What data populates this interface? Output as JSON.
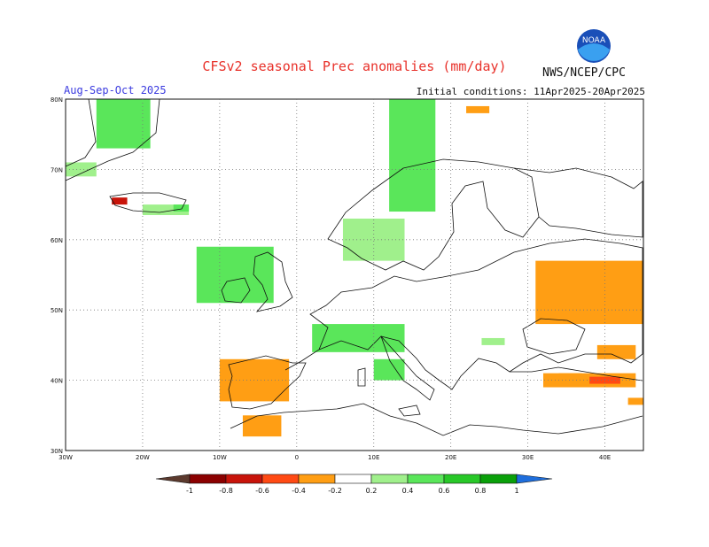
{
  "title": "CFSv2 seasonal Prec anomalies (mm/day)",
  "period": "Aug-Sep-Oct 2025",
  "initial_conditions": "Initial conditions: 11Apr2025-20Apr2025",
  "agency": "NWS/NCEP/CPC",
  "logo": {
    "icon": "noaa-logo-icon",
    "text": "NOAA"
  },
  "map": {
    "lon_range": [
      -30,
      45
    ],
    "lat_range": [
      30,
      80
    ],
    "lat_labels": [
      "80N",
      "70N",
      "60N",
      "50N",
      "40N",
      "30N"
    ],
    "lon_labels": [
      "30W",
      "20W",
      "10W",
      "0",
      "10E",
      "20E",
      "30E",
      "40E"
    ],
    "gridlines": "dotted"
  },
  "colorbar": {
    "ticks": [
      "-1",
      "-0.8",
      "-0.6",
      "-0.4",
      "-0.2",
      "0.2",
      "0.4",
      "0.6",
      "0.8",
      "1"
    ],
    "colors": [
      "#5c3a2e",
      "#8b0000",
      "#c8140a",
      "#ff4a14",
      "#ff9e14",
      "#ffffff",
      "#a0f08c",
      "#5ae65a",
      "#28c828",
      "#0aa00a",
      "#1e6edc"
    ]
  },
  "anomaly_regions": [
    {
      "level": "0.4",
      "lon": [
        -26,
        -19
      ],
      "lat": [
        73,
        80
      ]
    },
    {
      "level": "0.2",
      "lon": [
        -30,
        -26
      ],
      "lat": [
        69,
        71
      ]
    },
    {
      "level": "-0.8",
      "lon": [
        -24,
        -22
      ],
      "lat": [
        65,
        66
      ]
    },
    {
      "level": "0.2",
      "lon": [
        -20,
        -14
      ],
      "lat": [
        63.5,
        65
      ]
    },
    {
      "level": "0.4",
      "lon": [
        -16,
        -14
      ],
      "lat": [
        64,
        65
      ]
    },
    {
      "level": "0.4",
      "lon": [
        -13,
        -3
      ],
      "lat": [
        51,
        59
      ]
    },
    {
      "level": "0.4",
      "lon": [
        2,
        14
      ],
      "lat": [
        44,
        48
      ]
    },
    {
      "level": "0.4",
      "lon": [
        10,
        14
      ],
      "lat": [
        40,
        43
      ]
    },
    {
      "level": "0.2",
      "lon": [
        6,
        14
      ],
      "lat": [
        57,
        63
      ]
    },
    {
      "level": "0.4",
      "lon": [
        12,
        18
      ],
      "lat": [
        64,
        80
      ]
    },
    {
      "level": "0.2",
      "lon": [
        24,
        27
      ],
      "lat": [
        45,
        46
      ]
    },
    {
      "level": "-0.2",
      "lon": [
        -10,
        -1
      ],
      "lat": [
        37,
        43
      ]
    },
    {
      "level": "-0.2",
      "lon": [
        -7,
        -2
      ],
      "lat": [
        32,
        35
      ]
    },
    {
      "level": "-0.2",
      "lon": [
        31,
        45
      ],
      "lat": [
        48,
        57
      ]
    },
    {
      "level": "-0.2",
      "lon": [
        39,
        44
      ],
      "lat": [
        43,
        45
      ]
    },
    {
      "level": "-0.2",
      "lon": [
        32,
        44
      ],
      "lat": [
        39,
        41
      ]
    },
    {
      "level": "-0.4",
      "lon": [
        34,
        37
      ],
      "lat": [
        40,
        41
      ]
    },
    {
      "level": "-0.6",
      "lon": [
        38,
        42
      ],
      "lat": [
        39.5,
        40.5
      ]
    },
    {
      "level": "-0.2",
      "lon": [
        43,
        45
      ],
      "lat": [
        36.5,
        37.5
      ]
    },
    {
      "level": "-0.2",
      "lon": [
        22,
        25
      ],
      "lat": [
        78,
        79
      ]
    }
  ]
}
